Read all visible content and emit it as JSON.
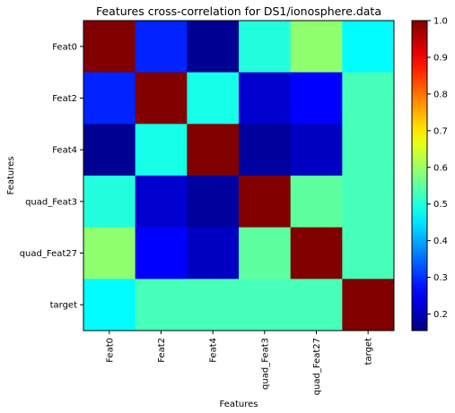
{
  "chart_data": {
    "type": "heatmap",
    "title": "Features cross-correlation for DS1/ionosphere.data",
    "xlabel": "Features",
    "ylabel": "Features",
    "labels": [
      "Feat0",
      "Feat2",
      "Feat4",
      "quad_Feat3",
      "quad_Feat27",
      "target"
    ],
    "matrix": [
      [
        1.0,
        0.29,
        0.17,
        0.5,
        0.59,
        0.47
      ],
      [
        0.29,
        1.0,
        0.49,
        0.22,
        0.26,
        0.53
      ],
      [
        0.17,
        0.49,
        1.0,
        0.18,
        0.21,
        0.53
      ],
      [
        0.5,
        0.22,
        0.18,
        1.0,
        0.55,
        0.53
      ],
      [
        0.59,
        0.26,
        0.21,
        0.55,
        1.0,
        0.53
      ],
      [
        0.47,
        0.53,
        0.53,
        0.53,
        0.53,
        1.0
      ]
    ],
    "colormap": "jet",
    "colorbar": {
      "min": 0.155,
      "max": 1.0,
      "ticks": [
        "0.2",
        "0.3",
        "0.4",
        "0.5",
        "0.6",
        "0.7",
        "0.8",
        "0.9",
        "1.0"
      ]
    },
    "grid": false,
    "legend": "none"
  }
}
